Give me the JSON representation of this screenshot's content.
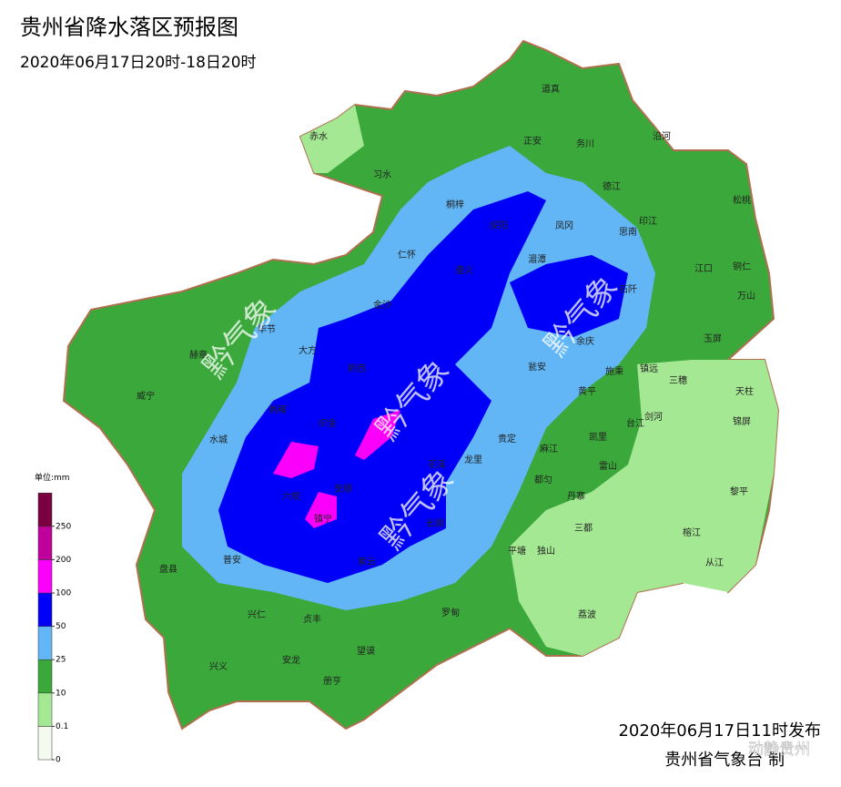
{
  "header": {
    "title": "贵州省降水落区预报图",
    "subtitle": "2020年06月17日20时-18日20时"
  },
  "legend": {
    "unit": "单位:mm",
    "ticks": [
      0,
      0.1,
      10,
      25,
      50,
      100,
      200,
      250
    ],
    "colors": [
      "#f4fbee",
      "#a5e894",
      "#3aa83a",
      "#62b6f6",
      "#0000fa",
      "#fa00fa",
      "#c0009a",
      "#7a0040"
    ]
  },
  "labels": [
    "赤水",
    "习水",
    "道真",
    "正安",
    "务川",
    "沿河",
    "桐梓",
    "绥阳",
    "凤冈",
    "德江",
    "印江",
    "思南",
    "松桃",
    "仁怀",
    "遵义",
    "湄潭",
    "江口",
    "铜仁",
    "万山",
    "金沙",
    "毕节",
    "大方",
    "赫章",
    "余庆",
    "石阡",
    "玉屏",
    "镇远",
    "施秉",
    "三穗",
    "天柱",
    "黔西",
    "瓮安",
    "威宁",
    "黄平",
    "纳雍",
    "织金",
    "剑河",
    "锦屏",
    "台江",
    "凯里",
    "贵定",
    "花溪",
    "龙里",
    "麻江",
    "雷山",
    "水城",
    "安顺",
    "都匀",
    "六枝",
    "镇宁",
    "长顺",
    "丹寨",
    "黎平",
    "三都",
    "紫云",
    "平塘",
    "独山",
    "榕江",
    "普安",
    "盘县",
    "从江",
    "荔波",
    "兴仁",
    "贞丰",
    "罗甸",
    "望谟",
    "兴义",
    "安龙",
    "册亨"
  ],
  "watermark": "黔气象",
  "footer": {
    "issued": "2020年06月17日11时发布",
    "agency": "贵州省气象台 制"
  },
  "logo_text": "动静贵州"
}
